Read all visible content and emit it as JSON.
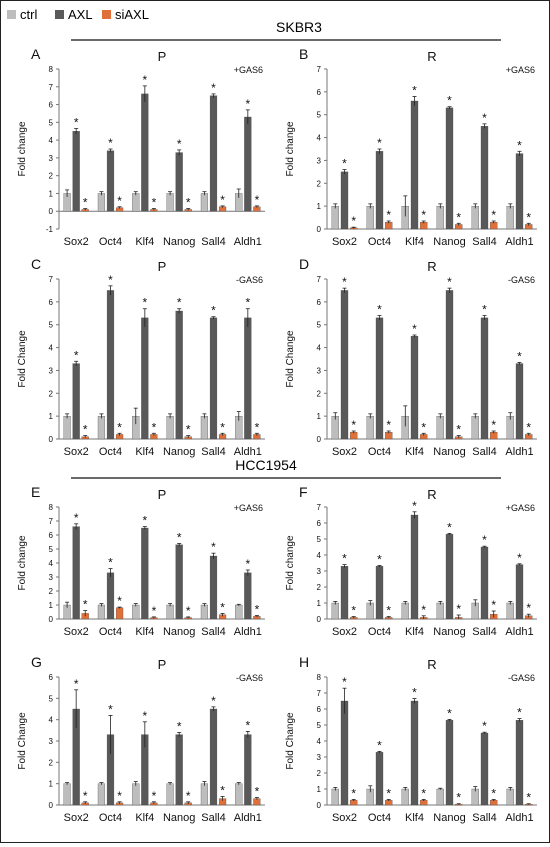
{
  "legend": [
    {
      "label": "ctrl",
      "color": "#bdbdbd"
    },
    {
      "label": "AXL",
      "color": "#595959"
    },
    {
      "label": "siAXL",
      "color": "#e0703a"
    }
  ],
  "headings": {
    "top": "SKBR3",
    "middle": "HCC1954"
  },
  "colors": {
    "ctrl": "#bdbdbd",
    "axl": "#595959",
    "siaxl": "#e0703a",
    "axis": "#777777",
    "text": "#111111"
  },
  "chart_data": [
    {
      "panel": "A",
      "title": "P",
      "note": "+GAS6",
      "ylabel": "Fold change",
      "type": "bar",
      "ylim": [
        -1,
        8
      ],
      "yticks": [
        -1,
        0,
        1,
        2,
        3,
        4,
        5,
        6,
        7,
        8
      ],
      "categories": [
        "Sox2",
        "Oct4",
        "Klf4",
        "Nanog",
        "Sall4",
        "Aldh1"
      ],
      "series": [
        {
          "name": "ctrl",
          "values": [
            1,
            1,
            1,
            1,
            1,
            1
          ],
          "errors": [
            0.2,
            0.1,
            0.1,
            0.1,
            0.1,
            0.25
          ]
        },
        {
          "name": "AXL",
          "values": [
            4.5,
            3.4,
            6.6,
            3.3,
            6.5,
            5.3
          ],
          "errors": [
            0.15,
            0.1,
            0.45,
            0.15,
            0.1,
            0.4
          ]
        },
        {
          "name": "siAXL",
          "values": [
            0.1,
            0.2,
            0.1,
            0.1,
            0.25,
            0.25
          ],
          "errors": [
            0.05,
            0.05,
            0.05,
            0.05,
            0.05,
            0.05
          ]
        }
      ]
    },
    {
      "panel": "B",
      "title": "R",
      "note": "+GAS6",
      "ylabel": "Fold change",
      "type": "bar",
      "ylim": [
        0,
        7
      ],
      "yticks": [
        0,
        1,
        2,
        3,
        4,
        5,
        6,
        7
      ],
      "categories": [
        "Sox2",
        "Oct4",
        "Klf4",
        "Nanog",
        "Sall4",
        "Aldh1"
      ],
      "series": [
        {
          "name": "ctrl",
          "values": [
            1,
            1,
            1,
            1,
            1,
            1
          ],
          "errors": [
            0.1,
            0.1,
            0.45,
            0.1,
            0.1,
            0.1
          ]
        },
        {
          "name": "AXL",
          "values": [
            2.5,
            3.4,
            5.6,
            5.3,
            4.5,
            3.3
          ],
          "errors": [
            0.1,
            0.1,
            0.2,
            0.05,
            0.1,
            0.1
          ]
        },
        {
          "name": "siAXL",
          "values": [
            0.05,
            0.3,
            0.3,
            0.2,
            0.3,
            0.2
          ],
          "errors": [
            0.03,
            0.05,
            0.05,
            0.05,
            0.05,
            0.05
          ]
        }
      ]
    },
    {
      "panel": "C",
      "title": "P",
      "note": "-GAS6",
      "ylabel": "Fold Change",
      "type": "bar",
      "ylim": [
        0,
        7
      ],
      "yticks": [
        0,
        1,
        2,
        3,
        4,
        5,
        6,
        7
      ],
      "categories": [
        "Sox2",
        "Oct4",
        "Klf4",
        "Nanog",
        "Sall4",
        "Aldh1"
      ],
      "series": [
        {
          "name": "ctrl",
          "values": [
            1,
            1,
            1,
            1,
            1,
            1
          ],
          "errors": [
            0.1,
            0.1,
            0.35,
            0.1,
            0.1,
            0.2
          ]
        },
        {
          "name": "AXL",
          "values": [
            3.3,
            6.5,
            5.3,
            5.6,
            5.3,
            5.3
          ],
          "errors": [
            0.1,
            0.2,
            0.4,
            0.1,
            0.05,
            0.4
          ]
        },
        {
          "name": "siAXL",
          "values": [
            0.1,
            0.2,
            0.2,
            0.1,
            0.2,
            0.2
          ],
          "errors": [
            0.05,
            0.05,
            0.05,
            0.05,
            0.05,
            0.05
          ]
        }
      ]
    },
    {
      "panel": "D",
      "title": "R",
      "note": "-GAS6",
      "ylabel": "Fold Change",
      "type": "bar",
      "ylim": [
        0,
        7
      ],
      "yticks": [
        0,
        1,
        2,
        3,
        4,
        5,
        6,
        7
      ],
      "categories": [
        "Sox2",
        "Oct4",
        "Klf4",
        "Nanog",
        "Sall4",
        "Aldh1"
      ],
      "series": [
        {
          "name": "ctrl",
          "values": [
            1,
            1,
            1,
            1,
            1,
            1
          ],
          "errors": [
            0.15,
            0.1,
            0.45,
            0.1,
            0.1,
            0.15
          ]
        },
        {
          "name": "AXL",
          "values": [
            6.5,
            5.3,
            4.5,
            6.5,
            5.3,
            3.3
          ],
          "errors": [
            0.1,
            0.1,
            0.05,
            0.1,
            0.1,
            0.05
          ]
        },
        {
          "name": "siAXL",
          "values": [
            0.3,
            0.3,
            0.2,
            0.1,
            0.3,
            0.2
          ],
          "errors": [
            0.05,
            0.05,
            0.05,
            0.05,
            0.05,
            0.05
          ]
        }
      ]
    },
    {
      "panel": "E",
      "title": "P",
      "note": "+GAS6",
      "ylabel": "Fold change",
      "type": "bar",
      "ylim": [
        0,
        8
      ],
      "yticks": [
        0,
        1,
        2,
        3,
        4,
        5,
        6,
        7,
        8
      ],
      "categories": [
        "Sox2",
        "Oct4",
        "Klf4",
        "Nanog",
        "Sall4",
        "Aldh1"
      ],
      "series": [
        {
          "name": "ctrl",
          "values": [
            1,
            1,
            1,
            1,
            1,
            1
          ],
          "errors": [
            0.2,
            0.1,
            0.1,
            0.1,
            0.1,
            0.05
          ]
        },
        {
          "name": "AXL",
          "values": [
            6.6,
            3.3,
            6.5,
            5.3,
            4.5,
            3.3
          ],
          "errors": [
            0.2,
            0.3,
            0.1,
            0.1,
            0.2,
            0.2
          ]
        },
        {
          "name": "siAXL",
          "values": [
            0.4,
            0.8,
            0.1,
            0.1,
            0.3,
            0.2
          ],
          "errors": [
            0.2,
            0.05,
            0.05,
            0.05,
            0.1,
            0.05
          ]
        }
      ]
    },
    {
      "panel": "F",
      "title": "R",
      "note": "+GAS6",
      "ylabel": "Fold change",
      "type": "bar",
      "ylim": [
        0,
        7
      ],
      "yticks": [
        0,
        1,
        2,
        3,
        4,
        5,
        6,
        7
      ],
      "categories": [
        "Sox2",
        "Oct4",
        "Klf4",
        "Nanog",
        "Sall4",
        "Aldh1"
      ],
      "series": [
        {
          "name": "ctrl",
          "values": [
            1,
            1,
            1,
            1,
            1,
            1
          ],
          "errors": [
            0.1,
            0.15,
            0.1,
            0.1,
            0.2,
            0.1
          ]
        },
        {
          "name": "AXL",
          "values": [
            3.3,
            3.3,
            6.5,
            5.3,
            4.5,
            3.4
          ],
          "errors": [
            0.1,
            0.05,
            0.2,
            0.05,
            0.05,
            0.05
          ]
        },
        {
          "name": "siAXL",
          "values": [
            0.1,
            0.1,
            0.1,
            0.1,
            0.3,
            0.2
          ],
          "errors": [
            0.05,
            0.05,
            0.1,
            0.15,
            0.2,
            0.1
          ]
        }
      ]
    },
    {
      "panel": "G",
      "title": "P",
      "note": "-GAS6",
      "ylabel": "Fold Change",
      "type": "bar",
      "ylim": [
        0,
        6
      ],
      "yticks": [
        0,
        1,
        2,
        3,
        4,
        5,
        6
      ],
      "categories": [
        "Sox2",
        "Oct4",
        "Klf4",
        "Nanog",
        "Sall4",
        "Aldh1"
      ],
      "series": [
        {
          "name": "ctrl",
          "values": [
            1,
            1,
            1,
            1,
            1,
            1
          ],
          "errors": [
            0.05,
            0.05,
            0.1,
            0.05,
            0.1,
            0.05
          ]
        },
        {
          "name": "AXL",
          "values": [
            4.5,
            3.3,
            3.3,
            3.3,
            4.5,
            3.3
          ],
          "errors": [
            0.9,
            0.9,
            0.6,
            0.1,
            0.1,
            0.15
          ]
        },
        {
          "name": "siAXL",
          "values": [
            0.1,
            0.1,
            0.1,
            0.1,
            0.3,
            0.3
          ],
          "errors": [
            0.05,
            0.05,
            0.05,
            0.05,
            0.1,
            0.05
          ]
        }
      ]
    },
    {
      "panel": "H",
      "title": "R",
      "note": "-GAS6",
      "ylabel": "Fold Change",
      "type": "bar",
      "ylim": [
        0,
        8
      ],
      "yticks": [
        0,
        1,
        2,
        3,
        4,
        5,
        6,
        7,
        8
      ],
      "categories": [
        "Sox2",
        "Oct4",
        "Klf4",
        "Nanog",
        "Sall4",
        "Aldh1"
      ],
      "series": [
        {
          "name": "ctrl",
          "values": [
            1,
            1,
            1,
            1,
            1,
            1
          ],
          "errors": [
            0.1,
            0.2,
            0.1,
            0.05,
            0.15,
            0.1
          ]
        },
        {
          "name": "AXL",
          "values": [
            6.5,
            3.3,
            6.5,
            5.3,
            4.5,
            5.3
          ],
          "errors": [
            0.8,
            0.05,
            0.15,
            0.05,
            0.05,
            0.1
          ]
        },
        {
          "name": "siAXL",
          "values": [
            0.3,
            0.3,
            0.3,
            0.05,
            0.3,
            0.05
          ],
          "errors": [
            0.05,
            0.05,
            0.05,
            0.03,
            0.05,
            0.03
          ]
        }
      ]
    }
  ]
}
